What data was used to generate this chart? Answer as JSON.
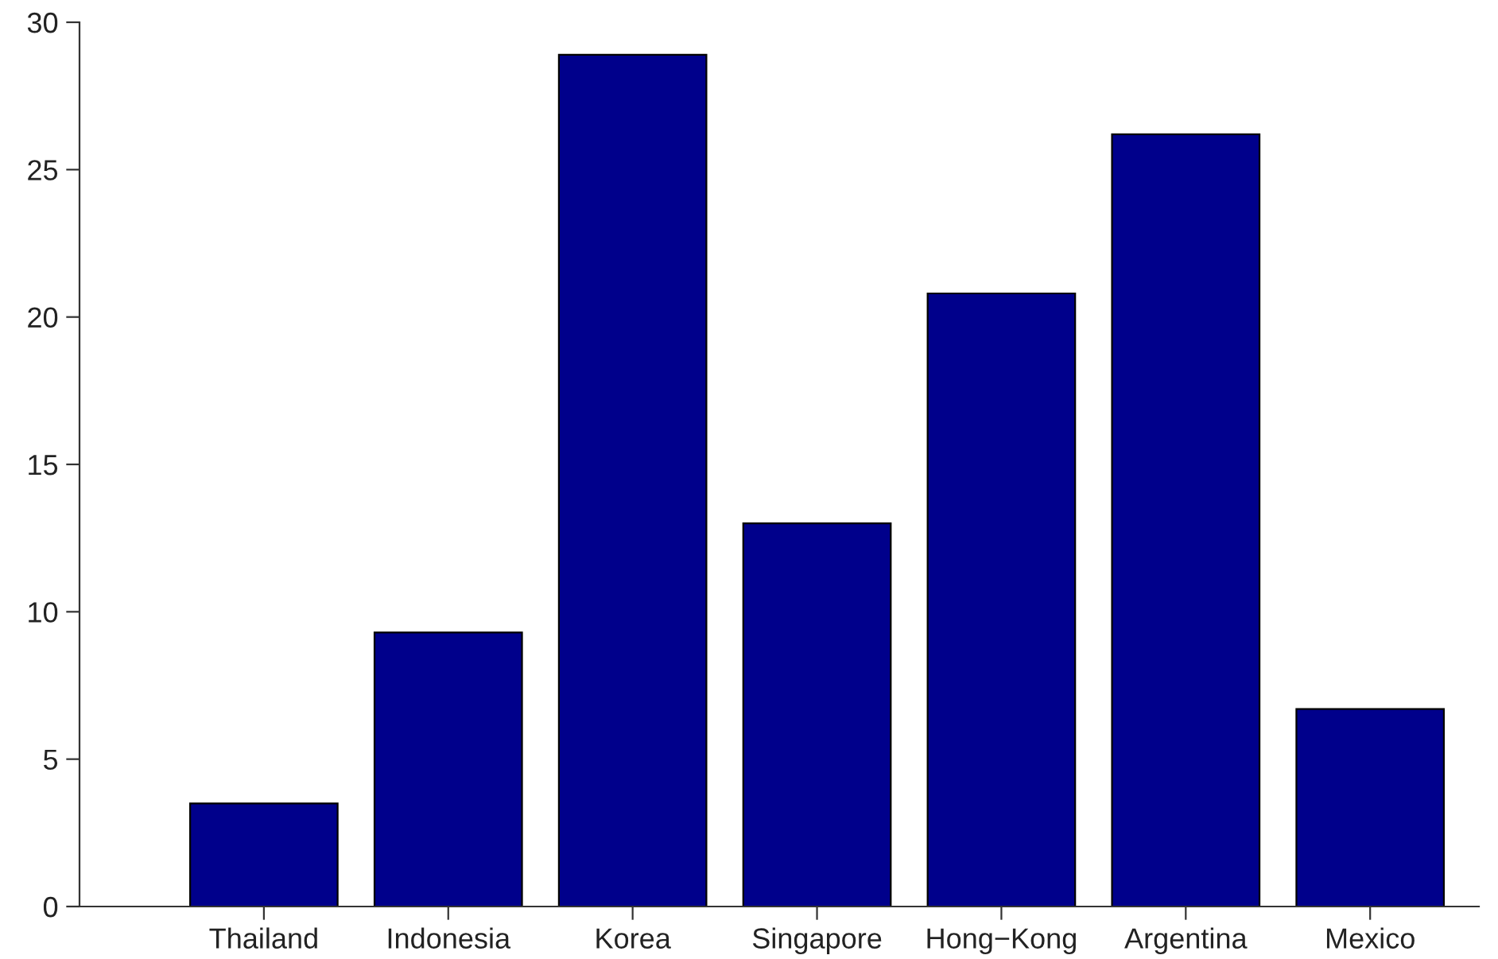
{
  "chart_data": {
    "type": "bar",
    "categories": [
      "Thailand",
      "Indonesia",
      "Korea",
      "Singapore",
      "Hong−Kong",
      "Argentina",
      "Mexico"
    ],
    "values": [
      3.5,
      9.3,
      28.9,
      13.0,
      20.8,
      26.2,
      6.7
    ],
    "color": "#00008b",
    "ylim": [
      0,
      30
    ],
    "yticks": [
      0,
      5,
      10,
      15,
      20,
      25,
      30
    ],
    "grid": false,
    "legend": false
  }
}
